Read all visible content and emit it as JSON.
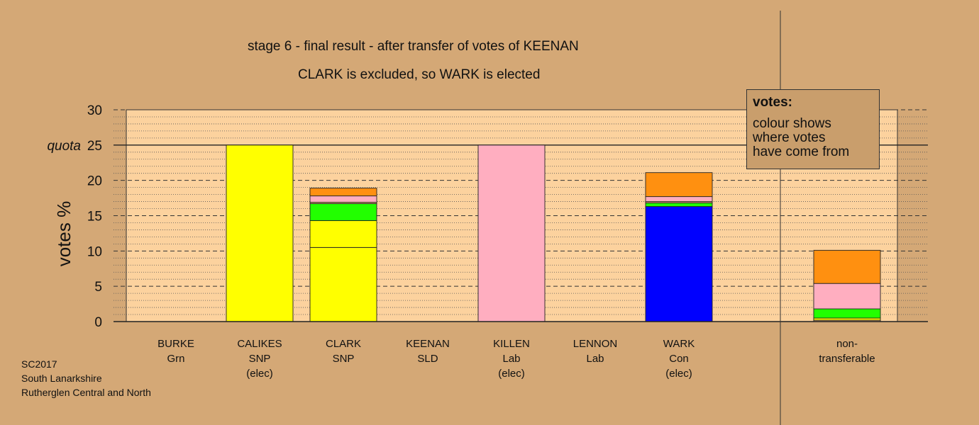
{
  "chart_data": {
    "type": "bar",
    "stacked": true,
    "title": "stage 6 - final result - after transfer of votes of KEENAN",
    "subtitle": "CLARK is excluded, so WARK is elected",
    "ylabel": "votes %",
    "ylim": [
      0,
      30
    ],
    "yticks": [
      "0",
      "5",
      "10",
      "15",
      "20",
      "25",
      "30"
    ],
    "quota": {
      "label": "quota",
      "value": 25
    },
    "grid": true,
    "categories": [
      {
        "name": "BURKE",
        "party": "Grn",
        "note": ""
      },
      {
        "name": "CALIKES",
        "party": "SNP",
        "note": "(elec)"
      },
      {
        "name": "CLARK",
        "party": "SNP",
        "note": ""
      },
      {
        "name": "KEENAN",
        "party": "SLD",
        "note": ""
      },
      {
        "name": "KILLEN",
        "party": "Lab",
        "note": "(elec)"
      },
      {
        "name": "LENNON",
        "party": "Lab",
        "note": ""
      },
      {
        "name": "WARK",
        "party": "Con",
        "note": "(elec)"
      },
      {
        "name": "non-",
        "party": "transferable",
        "note": ""
      }
    ],
    "stacks": [
      [],
      [
        {
          "color": "#ffff00",
          "value": 25
        }
      ],
      [
        {
          "color": "#ffff00",
          "value": 10.5
        },
        {
          "color": "#ffff00",
          "value": 3.8
        },
        {
          "color": "#22ff00",
          "value": 2.4
        },
        {
          "color": "#cc9966",
          "value": 0.2
        },
        {
          "color": "#ffaec0",
          "value": 0.9
        },
        {
          "color": "#ff9010",
          "value": 1.1
        }
      ],
      [],
      [
        {
          "color": "#ffaec0",
          "value": 25
        }
      ],
      [],
      [
        {
          "color": "#0000ff",
          "value": 16.3
        },
        {
          "color": "#22ff00",
          "value": 0.5
        },
        {
          "color": "#cc9966",
          "value": 0.2
        },
        {
          "color": "#ffaec0",
          "value": 0.7
        },
        {
          "color": "#ff9010",
          "value": 3.4
        }
      ],
      [
        {
          "color": "#cc9966",
          "value": 0.2
        },
        {
          "color": "#ffff00",
          "value": 0.3
        },
        {
          "color": "#22ff00",
          "value": 1.3
        },
        {
          "color": "#ffaec0",
          "value": 3.6
        },
        {
          "color": "#ff9010",
          "value": 4.7
        }
      ]
    ],
    "colors": {
      "plot_bg": "#fcd29e",
      "page_bg": "#d4a876"
    }
  },
  "legend": {
    "heading": "votes:",
    "line1": "colour shows",
    "line2": "where votes",
    "line3": "have come from"
  },
  "footer": {
    "line1": "SC2017",
    "line2": "South Lanarkshire",
    "line3": "Rutherglen Central and North"
  }
}
